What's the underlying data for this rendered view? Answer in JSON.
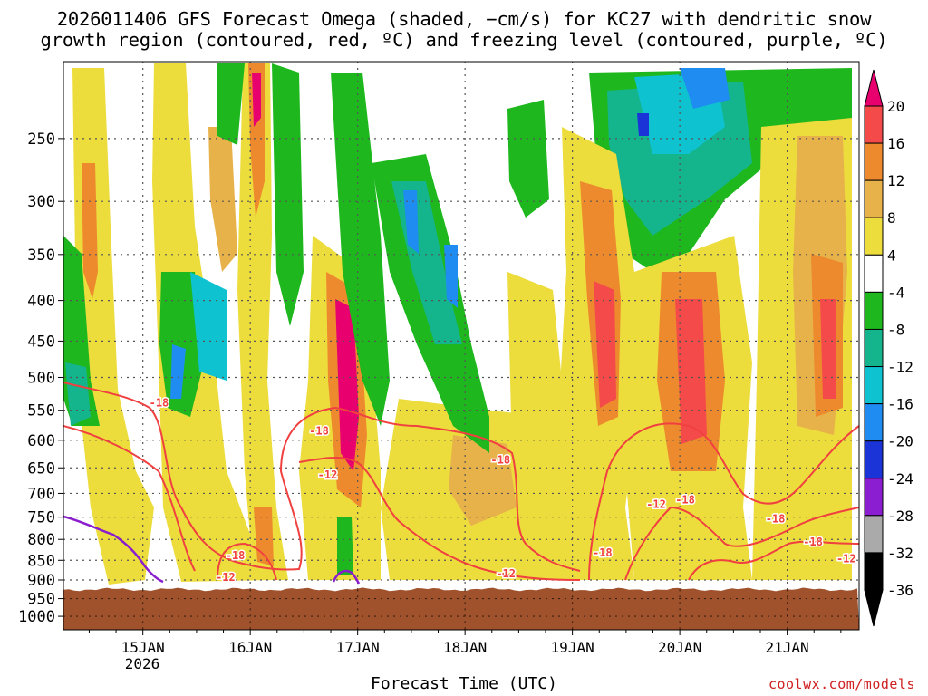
{
  "chart_data": {
    "type": "heatmap",
    "title_line1": "2026011406 GFS Forecast Omega (shaded, −cm/s) for KC27 with dendritic snow",
    "title_line2": "growth region (contoured, red, ºC) and freezing level (contoured, purple, ºC)",
    "xlabel": "Forecast Time (UTC)",
    "credit": "coolwx.com/models",
    "y_axis": {
      "scale": "pressure",
      "ticks": [
        250,
        300,
        350,
        400,
        450,
        500,
        550,
        600,
        650,
        700,
        750,
        800,
        850,
        900,
        950,
        1000
      ],
      "range": [
        200,
        1040
      ]
    },
    "x_axis": {
      "ticks": [
        "15JAN",
        "16JAN",
        "17JAN",
        "18JAN",
        "19JAN",
        "20JAN",
        "21JAN"
      ],
      "tick_days": [
        1,
        2,
        3,
        4,
        5,
        6,
        7
      ],
      "year_label": "2026",
      "range_days": [
        0.26,
        7.67
      ]
    },
    "colorbar": {
      "labels": [
        20,
        16,
        12,
        8,
        4,
        -4,
        -8,
        -12,
        -16,
        -20,
        -24,
        -28,
        -32,
        -36
      ],
      "colors": [
        "#e8006e",
        "#f44a4a",
        "#ee8a2e",
        "#e8b24a",
        "#ecdc3c",
        "#ffffff",
        "#1eb81e",
        "#14b48c",
        "#0ec2d0",
        "#1e8cf0",
        "#1a34d8",
        "#8a1ed0",
        "#aaaaaa",
        "#000000"
      ],
      "over_color": "#e8006e",
      "under_color": "#000000"
    },
    "colors": {
      "ground": "#a0522d",
      "dgz_contour": "#f04040",
      "freezing_contour": "#8a1ecc",
      "grid": "#555555",
      "credit": "#d02020"
    },
    "ground_pressure": 925,
    "contour_labels": [
      {
        "text": "-18",
        "day": 1.15,
        "p": 538
      },
      {
        "text": "-18",
        "day": 1.86,
        "p": 838
      },
      {
        "text": "-12",
        "day": 1.77,
        "p": 893
      },
      {
        "text": "-18",
        "day": 2.64,
        "p": 584
      },
      {
        "text": "-12",
        "day": 2.72,
        "p": 663
      },
      {
        "text": "-18",
        "day": 4.33,
        "p": 635
      },
      {
        "text": "-12",
        "day": 4.38,
        "p": 883
      },
      {
        "text": "-18",
        "day": 5.28,
        "p": 832
      },
      {
        "text": "-12",
        "day": 5.78,
        "p": 723
      },
      {
        "text": "-18",
        "day": 6.05,
        "p": 713
      },
      {
        "text": "-18",
        "day": 6.89,
        "p": 754
      },
      {
        "text": "-18",
        "day": 7.24,
        "p": 806
      },
      {
        "text": "-12",
        "day": 7.55,
        "p": 846
      }
    ]
  }
}
